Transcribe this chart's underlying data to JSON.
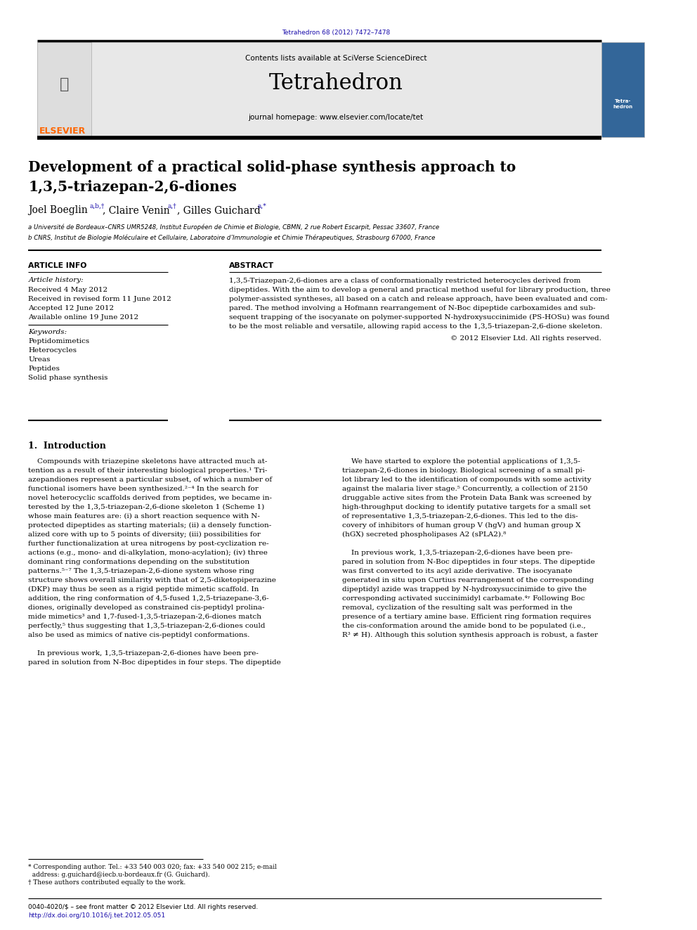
{
  "page_width": 9.92,
  "page_height": 13.23,
  "background_color": "#ffffff",
  "top_journal_ref": "Tetrahedron 68 (2012) 7472–7478",
  "top_journal_ref_color": "#1a0dab",
  "header_bg_color": "#e8e8e8",
  "header_title": "Tetrahedron",
  "header_subtitle": "Contents lists available at SciVerse ScienceDirect",
  "header_sciverse_color": "#1a0dab",
  "header_homepage": "journal homepage: www.elsevier.com/locate/tet",
  "elsevier_color": "#FF6600",
  "article_title_line1": "Development of a practical solid-phase synthesis approach to",
  "article_title_line2": "1,3,5-triazepan-2,6-diones",
  "affil_a": "a Université de Bordeaux–CNRS UMR5248, Institut Européen de Chimie et Biologie, CBMN, 2 rue Robert Escarpit, Pessac 33607, France",
  "affil_b": "b CNRS, Institut de Biologie Moléculaire et Cellulaire, Laboratoire d’Immunologie et Chimie Thérapeutiques, Strasbourg 67000, France",
  "article_info_title": "ARTICLE INFO",
  "article_history_title": "Article history:",
  "received1": "Received 4 May 2012",
  "received2": "Received in revised form 11 June 2012",
  "accepted": "Accepted 12 June 2012",
  "available": "Available online 19 June 2012",
  "keywords_title": "Keywords:",
  "keywords": [
    "Peptidomimetics",
    "Heterocycles",
    "Ureas",
    "Peptides",
    "Solid phase synthesis"
  ],
  "abstract_title": "ABSTRACT",
  "intro_heading": "1.  Introduction",
  "bottom_bar_link_color": "#1a0dab"
}
